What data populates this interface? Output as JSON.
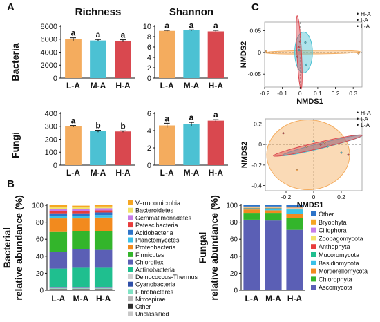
{
  "panels": {
    "A": "A",
    "B": "B",
    "C": "C"
  },
  "row_labels": {
    "bacteria": "Bacteria",
    "fungi": "Fungi"
  },
  "chart_data": [
    {
      "id": "bac_rich",
      "type": "bar",
      "title": "Richness",
      "ylabel": "Bacteria",
      "categories": [
        "L-A",
        "M-A",
        "H-A"
      ],
      "values": [
        6000,
        5800,
        5750
      ],
      "errors": [
        220,
        150,
        160
      ],
      "letters": [
        "a",
        "a",
        "a"
      ],
      "ylim": [
        0,
        8000
      ],
      "yticks": [
        0,
        2000,
        4000,
        6000,
        8000
      ],
      "colors": [
        "#F4AC5E",
        "#4CC1D3",
        "#D9484F"
      ]
    },
    {
      "id": "bac_shan",
      "type": "bar",
      "title": "Shannon",
      "categories": [
        "L-A",
        "M-A",
        "H-A"
      ],
      "values": [
        9.1,
        9.2,
        9.0
      ],
      "errors": [
        0.1,
        0.1,
        0.2
      ],
      "letters": [
        "a",
        "a",
        "a"
      ],
      "ylim": [
        0,
        10
      ],
      "yticks": [
        0,
        2,
        4,
        6,
        8,
        10
      ],
      "colors": [
        "#F4AC5E",
        "#4CC1D3",
        "#D9484F"
      ]
    },
    {
      "id": "fun_rich",
      "type": "bar",
      "ylabel": "Fungi",
      "categories": [
        "L-A",
        "M-A",
        "H-A"
      ],
      "values": [
        300,
        262,
        260
      ],
      "errors": [
        6,
        7,
        5
      ],
      "letters": [
        "a",
        "b",
        "b"
      ],
      "ylim": [
        0,
        400
      ],
      "yticks": [
        0,
        100,
        200,
        300,
        400
      ],
      "colors": [
        "#F4AC5E",
        "#4CC1D3",
        "#D9484F"
      ]
    },
    {
      "id": "fun_shan",
      "type": "bar",
      "categories": [
        "L-A",
        "M-A",
        "H-A"
      ],
      "values": [
        4.6,
        4.75,
        5.15
      ],
      "errors": [
        0.25,
        0.2,
        0.12
      ],
      "letters": [
        "a",
        "a",
        "a"
      ],
      "ylim": [
        0,
        6
      ],
      "yticks": [
        0,
        2,
        4,
        6
      ],
      "colors": [
        "#F4AC5E",
        "#4CC1D3",
        "#D9484F"
      ]
    },
    {
      "id": "bac_stack",
      "type": "bar",
      "stacked": true,
      "ylabel": "Bacterial relative abundance (%)",
      "categories": [
        "L-A",
        "M-A",
        "H-A"
      ],
      "ylim": [
        0,
        100
      ],
      "yticks": [
        0,
        20,
        40,
        60,
        80,
        100
      ],
      "series": [
        {
          "name": "Unclassified",
          "color": "#C8C8C8",
          "values": [
            1,
            1,
            1
          ]
        },
        {
          "name": "Other",
          "color": "#2E2E2E",
          "values": [
            0.5,
            0.5,
            0.5
          ]
        },
        {
          "name": "Nitrospirae",
          "color": "#B8B8B8",
          "values": [
            0.5,
            0.5,
            0.5
          ]
        },
        {
          "name": "Fibrobacteres",
          "color": "#7FE3C4",
          "values": [
            0.5,
            0.5,
            0.5
          ]
        },
        {
          "name": "Cyanobacteria",
          "color": "#2F4FA8",
          "values": [
            0.5,
            0.5,
            0.5
          ]
        },
        {
          "name": "Deinococcus-Thermus",
          "color": "#D0D0D0",
          "values": [
            0.5,
            0.5,
            0.5
          ]
        },
        {
          "name": "Actinobacteria",
          "color": "#1FBF8F",
          "values": [
            22,
            23,
            23
          ]
        },
        {
          "name": "Chloroflexi",
          "color": "#5B5FB5",
          "values": [
            20,
            22,
            21
          ]
        },
        {
          "name": "Firmicutes",
          "color": "#33B52B",
          "values": [
            23,
            21,
            22
          ]
        },
        {
          "name": "Proteobacteria",
          "color": "#F28A1E",
          "values": [
            16,
            15,
            16
          ]
        },
        {
          "name": "Planctomycetes",
          "color": "#3AC1E8",
          "values": [
            3,
            3,
            3
          ]
        },
        {
          "name": "Acidobacteria",
          "color": "#2E74C9",
          "values": [
            3,
            3,
            3
          ]
        },
        {
          "name": "Patescibacteria",
          "color": "#E83C3C",
          "values": [
            2.5,
            2.5,
            2.5
          ]
        },
        {
          "name": "Gemmatimonadetes",
          "color": "#C77DE8",
          "values": [
            2.5,
            2.5,
            2.5
          ]
        },
        {
          "name": "Bacteroidetes",
          "color": "#F2E36A",
          "values": [
            2,
            2,
            2
          ]
        },
        {
          "name": "Verrucomicrobia",
          "color": "#F5A623",
          "values": [
            2.5,
            2,
            2
          ]
        }
      ],
      "legend": [
        "Verrucomicrobia",
        "Bacteroidetes",
        "Gemmatimonadetes",
        "Patescibacteria",
        "Acidobacteria",
        "Planctomycetes",
        "Proteobacteria",
        "Firmicutes",
        "Chloroflexi",
        "Actinobacteria",
        "Deinococcus-Thermus",
        "Cyanobacteria",
        "Fibrobacteres",
        "Nitrospirae",
        "Other",
        "Unclassified"
      ]
    },
    {
      "id": "fun_stack",
      "type": "bar",
      "stacked": true,
      "ylabel": "Fungal relative abundance (%)",
      "categories": [
        "L-A",
        "M-A",
        "H-A"
      ],
      "ylim": [
        0,
        100
      ],
      "yticks": [
        0,
        20,
        40,
        60,
        80,
        100
      ],
      "series": [
        {
          "name": "Ascomycota",
          "color": "#5B5FB5",
          "values": [
            83,
            82,
            71
          ]
        },
        {
          "name": "Chlorophyta",
          "color": "#33B52B",
          "values": [
            8,
            9,
            14
          ]
        },
        {
          "name": "Mortierellomycota",
          "color": "#F28A1E",
          "values": [
            4,
            3,
            5
          ]
        },
        {
          "name": "Basidiomycota",
          "color": "#3AC1E8",
          "values": [
            1,
            2,
            5
          ]
        },
        {
          "name": "Mucoromycota",
          "color": "#1FBF8F",
          "values": [
            0.5,
            0.5,
            0.5
          ]
        },
        {
          "name": "Anthophyta",
          "color": "#E83C3C",
          "values": [
            0.5,
            0.5,
            0.5
          ]
        },
        {
          "name": "Zoopagomycota",
          "color": "#F2E36A",
          "values": [
            0.5,
            0.5,
            0.5
          ]
        },
        {
          "name": "Ciliophora",
          "color": "#C77DE8",
          "values": [
            0.5,
            0.5,
            0.5
          ]
        },
        {
          "name": "Bryophyta",
          "color": "#F5A623",
          "values": [
            0.5,
            0.5,
            0.5
          ]
        },
        {
          "name": "Other",
          "color": "#2E74C9",
          "values": [
            1.5,
            2,
            2.5
          ]
        }
      ],
      "legend": [
        "Other",
        "Bryophyta",
        "Ciliophora",
        "Zoopagomycota",
        "Anthophyta",
        "Mucoromycota",
        "Basidiomycota",
        "Mortierellomycota",
        "Chlorophyta",
        "Ascomycota"
      ]
    },
    {
      "id": "bac_nmds",
      "type": "scatter",
      "xlabel": "NMDS1",
      "ylabel": "NMDS2",
      "xlim": [
        -0.2,
        0.35
      ],
      "ylim": [
        -0.08,
        0.07
      ],
      "xticks": [
        -0.2,
        -0.1,
        0,
        0.1,
        0.2,
        0.3
      ],
      "yticks": [
        -0.05,
        0,
        0.05
      ],
      "legend": [
        "H-A",
        "I-A",
        "L-A"
      ],
      "groups": [
        {
          "name": "H-A",
          "color": "#F4AC5E",
          "points": [
            [
              -0.19,
              0.003
            ],
            [
              0.33,
              -0.002
            ]
          ],
          "ellipse": {
            "cx": 0.07,
            "cy": 0.0005,
            "rx": 0.27,
            "ry": 0.004,
            "angle": -0.6
          }
        },
        {
          "name": "I-A",
          "color": "#4CC1D3",
          "points": [
            [
              -0.005,
              0.005
            ],
            [
              0.03,
              0.023
            ],
            [
              0.035,
              -0.028
            ]
          ],
          "ellipse": {
            "cx": 0.02,
            "cy": 0.0,
            "rx": 0.05,
            "ry": 0.047,
            "angle": 0
          }
        },
        {
          "name": "L-A",
          "color": "#D9484F",
          "points": [
            [
              0.0,
              0.025
            ],
            [
              -0.008,
              0.012
            ],
            [
              -0.015,
              -0.01
            ]
          ],
          "ellipse": {
            "cx": -0.005,
            "cy": 0.0,
            "rx": 0.013,
            "ry": 0.085,
            "angle": -3
          }
        }
      ]
    },
    {
      "id": "fun_nmds",
      "type": "scatter",
      "xlabel": "NMDS1",
      "ylabel": "NMDS2",
      "xlim": [
        -0.35,
        0.35
      ],
      "ylim": [
        -0.45,
        0.25
      ],
      "xticks": [
        -0.2,
        0,
        0.2
      ],
      "yticks": [
        -0.4,
        -0.2,
        0,
        0.2
      ],
      "legend": [
        "H-A",
        "I-A",
        "L-A"
      ],
      "groups": [
        {
          "name": "H-A",
          "color": "#F4AC5E",
          "points": [
            [
              -0.12,
              -0.25
            ],
            [
              -0.05,
              -0.02
            ],
            [
              0.08,
              0.02
            ]
          ],
          "ellipse": {
            "cx": -0.04,
            "cy": -0.1,
            "rx": 0.3,
            "ry": 0.34,
            "angle": 0
          }
        },
        {
          "name": "I-A",
          "color": "#4CC1D3",
          "points": [
            [
              0.0,
              0.03
            ],
            [
              0.1,
              -0.02
            ],
            [
              0.2,
              -0.08
            ]
          ],
          "ellipse": {
            "cx": 0.06,
            "cy": -0.01,
            "rx": 0.3,
            "ry": 0.025,
            "angle": -14
          }
        },
        {
          "name": "L-A",
          "color": "#D9484F",
          "points": [
            [
              -0.22,
              0.11
            ],
            [
              0.05,
              0.0
            ],
            [
              0.25,
              -0.1
            ]
          ],
          "ellipse": {
            "cx": 0.03,
            "cy": -0.01,
            "rx": 0.33,
            "ry": 0.03,
            "angle": -13
          }
        }
      ]
    }
  ]
}
